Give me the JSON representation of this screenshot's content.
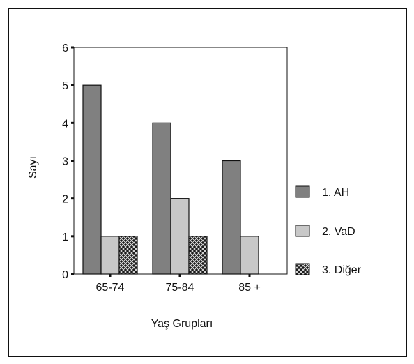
{
  "chart_data": {
    "type": "bar",
    "title": "",
    "xlabel": "Yaş Grupları",
    "ylabel": "Sayı",
    "categories": [
      "65-74",
      "75-84",
      "85 +"
    ],
    "ylim": [
      0,
      6
    ],
    "yticks": [
      0,
      1,
      2,
      3,
      4,
      5,
      6
    ],
    "grid": false,
    "legend_position": "right",
    "series": [
      {
        "name": "1. AH",
        "values": [
          5,
          4,
          3
        ],
        "color": "#808080",
        "pattern": "solid"
      },
      {
        "name": "2. VaD",
        "values": [
          1,
          2,
          1
        ],
        "color": "#c8c8c8",
        "pattern": "solid"
      },
      {
        "name": "3. Diğer",
        "values": [
          1,
          1,
          0
        ],
        "color": "#222222",
        "pattern": "crosshatch"
      }
    ]
  }
}
